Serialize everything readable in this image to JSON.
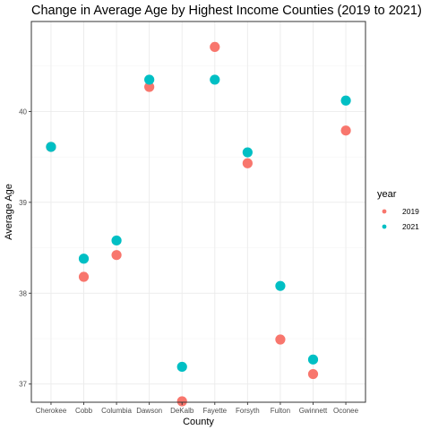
{
  "chart_data": {
    "type": "scatter",
    "title": "Change in Average Age by Highest Income Counties (2019 to 2021)",
    "xlabel": "County",
    "ylabel": "Average Age",
    "categories": [
      "Cherokee",
      "Cobb",
      "Columbia",
      "Dawson",
      "DeKalb",
      "Fayette",
      "Forsyth",
      "Fulton",
      "Gwinnett",
      "Oconee"
    ],
    "ylim": [
      36.8,
      40.99
    ],
    "yticks": [
      37,
      38,
      39,
      40
    ],
    "grid": true,
    "legend": {
      "title": "year",
      "position": "right"
    },
    "series": [
      {
        "name": "2019",
        "color": "#F8766D",
        "values": [
          39.61,
          38.18,
          38.42,
          40.27,
          36.81,
          40.71,
          39.43,
          37.49,
          37.11,
          39.79
        ]
      },
      {
        "name": "2021",
        "color": "#00BFC4",
        "values": [
          39.61,
          38.38,
          38.58,
          40.35,
          37.19,
          40.35,
          39.55,
          38.08,
          37.27,
          40.12
        ]
      }
    ]
  }
}
